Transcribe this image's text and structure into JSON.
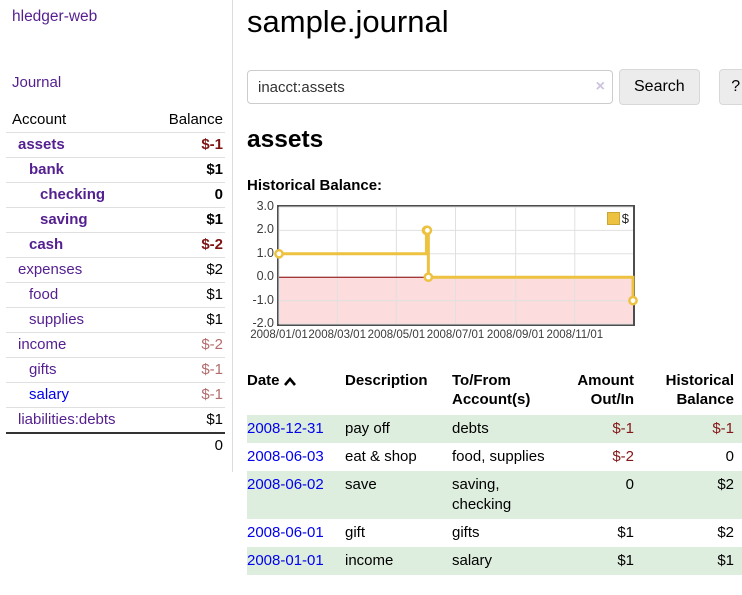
{
  "colors": {
    "purple_link": "#541f8f",
    "blue_link": "#0000ee",
    "negative_bold": "#7d1414",
    "negative": "#841617",
    "negative_muted": "#b36b6b",
    "row_shade_green": "#deeede"
  },
  "app": {
    "title": "hledger-web",
    "nav_journal": "Journal"
  },
  "sidebar": {
    "header": {
      "account": "Account",
      "balance": "Balance"
    },
    "accounts": [
      {
        "name": "assets",
        "depth": 1,
        "bold": true,
        "name_color": "#541f8f",
        "balance": "$-1",
        "balance_color": "#7d1414",
        "balance_bold": true
      },
      {
        "name": "bank",
        "depth": 2,
        "bold": true,
        "name_color": "#541f8f",
        "balance": "$1",
        "balance_color": "#000000",
        "balance_bold": true
      },
      {
        "name": "checking",
        "depth": 3,
        "bold": true,
        "name_color": "#541f8f",
        "balance": "0",
        "balance_color": "#000000",
        "balance_bold": true
      },
      {
        "name": "saving",
        "depth": 3,
        "bold": true,
        "name_color": "#541f8f",
        "balance": "$1",
        "balance_color": "#000000",
        "balance_bold": true
      },
      {
        "name": "cash",
        "depth": 2,
        "bold": true,
        "name_color": "#541f8f",
        "balance": "$-2",
        "balance_color": "#7d1414",
        "balance_bold": true
      },
      {
        "name": "expenses",
        "depth": 1,
        "bold": false,
        "name_color": "#541f8f",
        "balance": "$2",
        "balance_color": "#000000",
        "balance_bold": false
      },
      {
        "name": "food",
        "depth": 2,
        "bold": false,
        "name_color": "#541f8f",
        "balance": "$1",
        "balance_color": "#000000",
        "balance_bold": false
      },
      {
        "name": "supplies",
        "depth": 2,
        "bold": false,
        "name_color": "#541f8f",
        "balance": "$1",
        "balance_color": "#000000",
        "balance_bold": false
      },
      {
        "name": "income",
        "depth": 1,
        "bold": false,
        "name_color": "#541f8f",
        "balance": "$-2",
        "balance_color": "#b36b6b",
        "balance_bold": false
      },
      {
        "name": "gifts",
        "depth": 2,
        "bold": false,
        "name_color": "#541f8f",
        "balance": "$-1",
        "balance_color": "#b36b6b",
        "balance_bold": false
      },
      {
        "name": "salary",
        "depth": 2,
        "bold": false,
        "name_color": "#0000ee",
        "balance": "$-1",
        "balance_color": "#b36b6b",
        "balance_bold": false
      },
      {
        "name": "liabilities:debts",
        "depth": 1,
        "bold": false,
        "name_color": "#541f8f",
        "balance": "$1",
        "balance_color": "#000000",
        "balance_bold": false
      }
    ],
    "total": "0"
  },
  "page": {
    "title": "sample.journal",
    "account_heading": "assets",
    "chart_label": "Historical Balance:"
  },
  "search": {
    "value": "inacct:assets",
    "clear_icon": "×",
    "button_label": "Search",
    "help_label": "?"
  },
  "chart_data": {
    "type": "line",
    "title": "Historical Balance:",
    "step": true,
    "xlim": [
      "2008-01-01",
      "2008-12-31"
    ],
    "ylim": [
      -2,
      3
    ],
    "x_ticks": [
      "2008/01/01",
      "2008/03/01",
      "2008/05/01",
      "2008/07/01",
      "2008/09/01",
      "2008/11/01"
    ],
    "y_ticks": [
      "3.0",
      "2.0",
      "1.0",
      "0.0",
      "-1.0",
      "-2.0"
    ],
    "points": [
      [
        "2008-01-01",
        1
      ],
      [
        "2008-06-01",
        2
      ],
      [
        "2008-06-02",
        2
      ],
      [
        "2008-06-03",
        0
      ],
      [
        "2008-12-31",
        -1
      ]
    ],
    "legend": [
      {
        "label": "$",
        "color": "#edc240"
      }
    ],
    "legend_position": "top-right",
    "grid": true,
    "colors": {
      "series": "#edc240",
      "grid": "#e0e0e0",
      "zero_line": "#8b0000",
      "negative_region": "#fcdcdc",
      "plot_border": "#4d4d4d"
    }
  },
  "register": {
    "columns": [
      {
        "label": "Date",
        "align": "left",
        "sorted": "asc"
      },
      {
        "label": "Description",
        "align": "left"
      },
      {
        "label": "To/From\nAccount(s)",
        "align": "left"
      },
      {
        "label": "Amount\nOut/In",
        "align": "right"
      },
      {
        "label": "Historical\nBalance",
        "align": "right"
      }
    ],
    "rows": [
      {
        "date": "2008-12-31",
        "description": "pay off",
        "accounts": [
          "debts"
        ],
        "amount": "$-1",
        "amount_negative": true,
        "balance": "$-1",
        "balance_negative": true
      },
      {
        "date": "2008-06-03",
        "description": "eat & shop",
        "accounts": [
          "food, supplies"
        ],
        "amount": "$-2",
        "amount_negative": true,
        "balance": "0",
        "balance_negative": false
      },
      {
        "date": "2008-06-02",
        "description": "save",
        "accounts": [
          "saving,",
          "checking"
        ],
        "amount": "0",
        "amount_negative": false,
        "balance": "$2",
        "balance_negative": false
      },
      {
        "date": "2008-06-01",
        "description": "gift",
        "accounts": [
          "gifts"
        ],
        "amount": "$1",
        "amount_negative": false,
        "balance": "$2",
        "balance_negative": false
      },
      {
        "date": "2008-01-01",
        "description": "income",
        "accounts": [
          "salary"
        ],
        "amount": "$1",
        "amount_negative": false,
        "balance": "$1",
        "balance_negative": false
      }
    ]
  }
}
